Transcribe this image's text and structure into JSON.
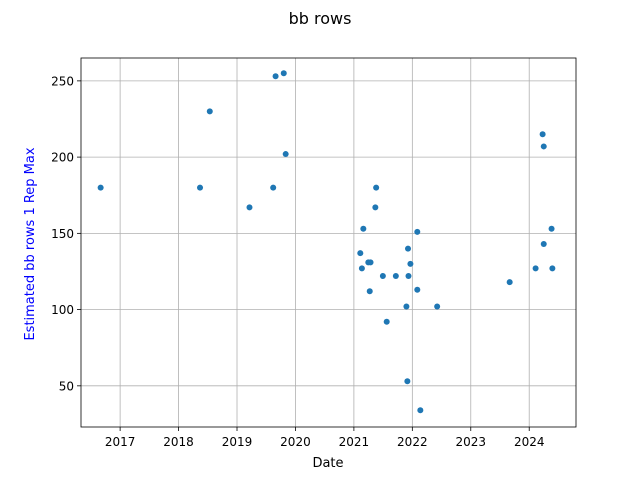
{
  "chart_data": {
    "type": "scatter",
    "title": "bb rows",
    "xlabel": "Date",
    "ylabel": "Estimated bb rows 1 Rep Max",
    "x_axis_type": "date",
    "xlim": [
      "2016-05-01",
      "2024-10-20"
    ],
    "ylim": [
      23,
      265
    ],
    "x_ticks": [
      "2017",
      "2018",
      "2019",
      "2020",
      "2021",
      "2022",
      "2023",
      "2024"
    ],
    "y_ticks": [
      50,
      100,
      150,
      200,
      250
    ],
    "grid": true,
    "colors": {
      "marker": "#1f77b4",
      "ylabel": "#0000ff",
      "grid": "#b0b0b0",
      "axis": "#000000",
      "text": "#000000"
    },
    "series": [
      {
        "points": [
          {
            "x": "2016-09-01",
            "y": 180
          },
          {
            "x": "2018-05-15",
            "y": 180
          },
          {
            "x": "2018-07-15",
            "y": 230
          },
          {
            "x": "2019-03-20",
            "y": 167
          },
          {
            "x": "2019-08-15",
            "y": 180
          },
          {
            "x": "2019-08-30",
            "y": 253
          },
          {
            "x": "2019-10-20",
            "y": 255
          },
          {
            "x": "2019-11-01",
            "y": 202
          },
          {
            "x": "2021-02-10",
            "y": 137
          },
          {
            "x": "2021-02-20",
            "y": 127
          },
          {
            "x": "2021-03-01",
            "y": 153
          },
          {
            "x": "2021-04-01",
            "y": 131
          },
          {
            "x": "2021-04-10",
            "y": 112
          },
          {
            "x": "2021-04-15",
            "y": 131
          },
          {
            "x": "2021-05-15",
            "y": 167
          },
          {
            "x": "2021-05-20",
            "y": 180
          },
          {
            "x": "2021-07-01",
            "y": 122
          },
          {
            "x": "2021-07-25",
            "y": 92
          },
          {
            "x": "2021-09-20",
            "y": 122
          },
          {
            "x": "2021-11-25",
            "y": 102
          },
          {
            "x": "2021-12-01",
            "y": 53
          },
          {
            "x": "2021-12-05",
            "y": 140
          },
          {
            "x": "2021-12-08",
            "y": 122
          },
          {
            "x": "2021-12-20",
            "y": 130
          },
          {
            "x": "2022-02-01",
            "y": 113
          },
          {
            "x": "2022-02-01",
            "y": 151
          },
          {
            "x": "2022-02-20",
            "y": 34
          },
          {
            "x": "2022-06-05",
            "y": 102
          },
          {
            "x": "2023-09-01",
            "y": 118
          },
          {
            "x": "2024-02-10",
            "y": 127
          },
          {
            "x": "2024-03-25",
            "y": 215
          },
          {
            "x": "2024-04-01",
            "y": 207
          },
          {
            "x": "2024-04-01",
            "y": 143
          },
          {
            "x": "2024-05-20",
            "y": 153
          },
          {
            "x": "2024-05-25",
            "y": 127
          }
        ]
      }
    ]
  }
}
